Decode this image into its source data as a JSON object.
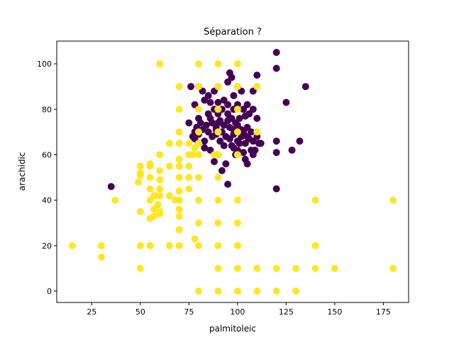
{
  "chart_data": {
    "type": "scatter",
    "title": "Séparation ?",
    "xlabel": "palmitoleic",
    "ylabel": "arachidic",
    "xlim": [
      7,
      188
    ],
    "ylim": [
      -5,
      110
    ],
    "xticks": [
      25,
      50,
      75,
      100,
      125,
      150,
      175
    ],
    "yticks": [
      0,
      20,
      40,
      60,
      80,
      100
    ],
    "grid": false,
    "legend": "none",
    "colors": {
      "class_0": "#440154",
      "class_1": "#fde725",
      "axis": "#000000",
      "background": "#ffffff"
    },
    "series": [
      {
        "name": "class_0",
        "color": "#440154",
        "points": [
          [
            35,
            46
          ],
          [
            76,
            90
          ],
          [
            80,
            90
          ],
          [
            82,
            88
          ],
          [
            85,
            86
          ],
          [
            88,
            88
          ],
          [
            90,
            90
          ],
          [
            95,
            92
          ],
          [
            96,
            96
          ],
          [
            97,
            94
          ],
          [
            98,
            86
          ],
          [
            100,
            90
          ],
          [
            102,
            88
          ],
          [
            105,
            82
          ],
          [
            108,
            88
          ],
          [
            110,
            95
          ],
          [
            120,
            105
          ],
          [
            120,
            98
          ],
          [
            135,
            90
          ],
          [
            125,
            83
          ],
          [
            78,
            82
          ],
          [
            83,
            84
          ],
          [
            86,
            83
          ],
          [
            90,
            83
          ],
          [
            93,
            84
          ],
          [
            95,
            82
          ],
          [
            98,
            80
          ],
          [
            100,
            82
          ],
          [
            103,
            80
          ],
          [
            106,
            78
          ],
          [
            108,
            80
          ],
          [
            110,
            76
          ],
          [
            75,
            74
          ],
          [
            80,
            76
          ],
          [
            85,
            78
          ],
          [
            88,
            80
          ],
          [
            90,
            78
          ],
          [
            92,
            80
          ],
          [
            95,
            78
          ],
          [
            97,
            76
          ],
          [
            99,
            74
          ],
          [
            101,
            76
          ],
          [
            104,
            77
          ],
          [
            84,
            73
          ],
          [
            87,
            74
          ],
          [
            89,
            72
          ],
          [
            91,
            75
          ],
          [
            93,
            73
          ],
          [
            96,
            72
          ],
          [
            98,
            71
          ],
          [
            100,
            73
          ],
          [
            102,
            71
          ],
          [
            105,
            72
          ],
          [
            78,
            70
          ],
          [
            80,
            69
          ],
          [
            82,
            71
          ],
          [
            85,
            70
          ],
          [
            87,
            68
          ],
          [
            89,
            69
          ],
          [
            92,
            70
          ],
          [
            94,
            68
          ],
          [
            96,
            67
          ],
          [
            98,
            69
          ],
          [
            100,
            66
          ],
          [
            102,
            68
          ],
          [
            104,
            65
          ],
          [
            106,
            67
          ],
          [
            108,
            66
          ],
          [
            110,
            68
          ],
          [
            111,
            65
          ],
          [
            112,
            65
          ],
          [
            120,
            66
          ],
          [
            128,
            62
          ],
          [
            132,
            66
          ],
          [
            78,
            67
          ],
          [
            80,
            65
          ],
          [
            83,
            63
          ],
          [
            86,
            62
          ],
          [
            88,
            57
          ],
          [
            90,
            60
          ],
          [
            92,
            53
          ],
          [
            94,
            56
          ],
          [
            95,
            47
          ],
          [
            98,
            63
          ],
          [
            100,
            62
          ],
          [
            101,
            65
          ],
          [
            103,
            61
          ],
          [
            104,
            58
          ],
          [
            105,
            56
          ],
          [
            107,
            62
          ],
          [
            108,
            60
          ],
          [
            120,
            61
          ],
          [
            120,
            45
          ],
          [
            77,
            68
          ],
          [
            79,
            72
          ],
          [
            81,
            74
          ],
          [
            83,
            66
          ],
          [
            89,
            71
          ],
          [
            91,
            66
          ],
          [
            93,
            64
          ],
          [
            97,
            64
          ],
          [
            99,
            60
          ],
          [
            103,
            70
          ],
          [
            105,
            68
          ],
          [
            107,
            70
          ],
          [
            109,
            62
          ],
          [
            95,
            75
          ],
          [
            86,
            76
          ],
          [
            90,
            74
          ]
        ]
      },
      {
        "name": "class_1",
        "color": "#fde725",
        "points": [
          [
            15,
            20
          ],
          [
            30,
            20
          ],
          [
            30,
            15
          ],
          [
            37,
            40
          ],
          [
            49,
            48
          ],
          [
            50,
            51
          ],
          [
            50,
            52
          ],
          [
            50,
            55
          ],
          [
            50,
            20
          ],
          [
            50,
            10
          ],
          [
            50,
            35
          ],
          [
            55,
            56
          ],
          [
            55,
            55
          ],
          [
            55,
            50
          ],
          [
            55,
            45
          ],
          [
            55,
            40
          ],
          [
            55,
            32
          ],
          [
            55,
            20
          ],
          [
            57,
            42
          ],
          [
            57,
            36
          ],
          [
            57,
            33
          ],
          [
            58,
            42
          ],
          [
            59,
            38
          ],
          [
            60,
            35
          ],
          [
            60,
            34
          ],
          [
            60,
            45
          ],
          [
            60,
            42
          ],
          [
            60,
            49
          ],
          [
            60,
            53
          ],
          [
            60,
            60
          ],
          [
            60,
            100
          ],
          [
            65,
            65
          ],
          [
            65,
            55
          ],
          [
            65,
            42
          ],
          [
            65,
            20
          ],
          [
            68,
            40
          ],
          [
            70,
            90
          ],
          [
            70,
            80
          ],
          [
            70,
            70
          ],
          [
            70,
            65
          ],
          [
            70,
            58
          ],
          [
            70,
            55
          ],
          [
            70,
            50
          ],
          [
            70,
            44
          ],
          [
            70,
            40
          ],
          [
            70,
            36
          ],
          [
            70,
            33
          ],
          [
            70,
            27
          ],
          [
            70,
            20
          ],
          [
            75,
            65
          ],
          [
            75,
            60
          ],
          [
            75,
            55
          ],
          [
            75,
            50
          ],
          [
            75,
            45
          ],
          [
            77,
            60
          ],
          [
            78,
            63
          ],
          [
            78,
            23
          ],
          [
            80,
            100
          ],
          [
            80,
            90
          ],
          [
            80,
            80
          ],
          [
            80,
            70
          ],
          [
            80,
            65
          ],
          [
            80,
            60
          ],
          [
            80,
            50
          ],
          [
            80,
            40
          ],
          [
            80,
            30
          ],
          [
            80,
            20
          ],
          [
            80,
            0
          ],
          [
            88,
            60
          ],
          [
            90,
            100
          ],
          [
            90,
            90
          ],
          [
            90,
            80
          ],
          [
            90,
            70
          ],
          [
            90,
            60
          ],
          [
            90,
            50
          ],
          [
            90,
            40
          ],
          [
            90,
            30
          ],
          [
            90,
            20
          ],
          [
            90,
            10
          ],
          [
            90,
            0
          ],
          [
            100,
            100
          ],
          [
            100,
            90
          ],
          [
            100,
            80
          ],
          [
            100,
            70
          ],
          [
            100,
            60
          ],
          [
            100,
            40
          ],
          [
            100,
            30
          ],
          [
            100,
            20
          ],
          [
            100,
            10
          ],
          [
            100,
            0
          ],
          [
            110,
            90
          ],
          [
            110,
            70
          ],
          [
            110,
            10
          ],
          [
            110,
            0
          ],
          [
            120,
            10
          ],
          [
            120,
            0
          ],
          [
            130,
            10
          ],
          [
            130,
            0
          ],
          [
            140,
            40
          ],
          [
            140,
            20
          ],
          [
            140,
            10
          ],
          [
            150,
            10
          ],
          [
            180,
            40
          ],
          [
            180,
            10
          ]
        ]
      }
    ]
  }
}
